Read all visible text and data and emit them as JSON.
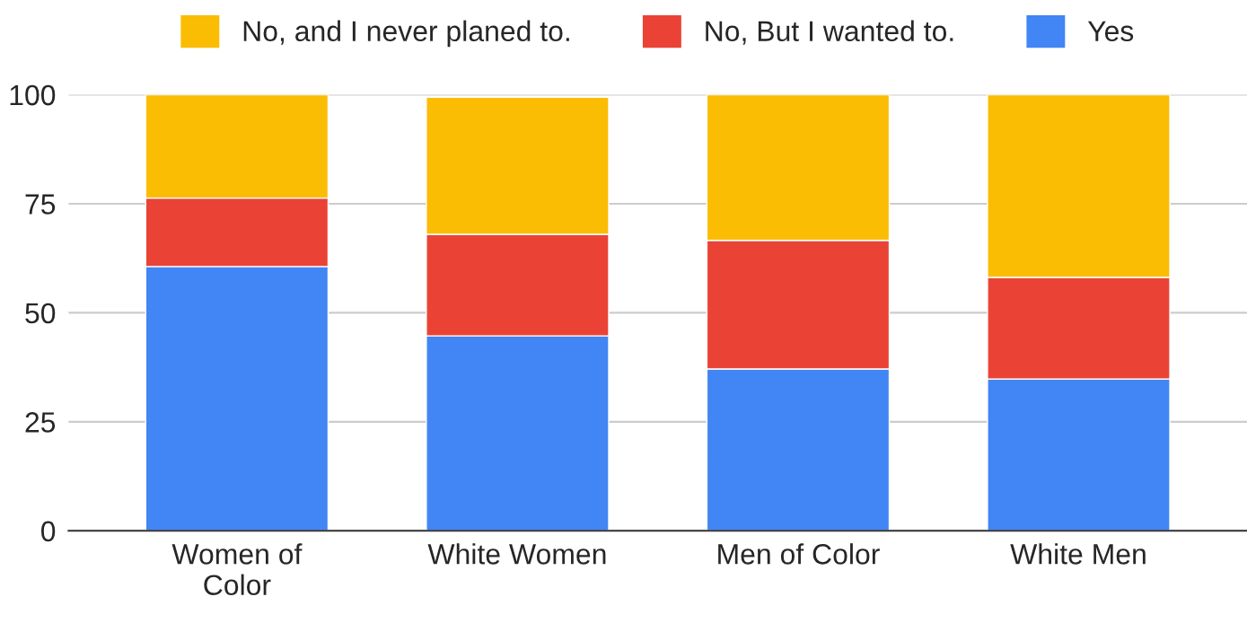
{
  "chart_data": {
    "type": "bar",
    "stacked": true,
    "categories": [
      "Women of\nColor",
      "White Women",
      "Men of Color",
      "White Men"
    ],
    "series": [
      {
        "name": "Yes",
        "color": "#4285f4",
        "values": [
          60.6,
          44.7,
          37.1,
          34.8
        ]
      },
      {
        "name": "No, But I wanted to.",
        "color": "#ea4335",
        "values": [
          15.7,
          23.3,
          29.5,
          23.3
        ]
      },
      {
        "name": "No, and I never planed to.",
        "color": "#fbbc04",
        "values": [
          23.7,
          31.4,
          33.4,
          41.9
        ]
      }
    ],
    "ylim": [
      0,
      100
    ],
    "yticks": [
      0,
      25,
      50,
      75,
      100
    ],
    "grid": "y",
    "legend": "top"
  }
}
